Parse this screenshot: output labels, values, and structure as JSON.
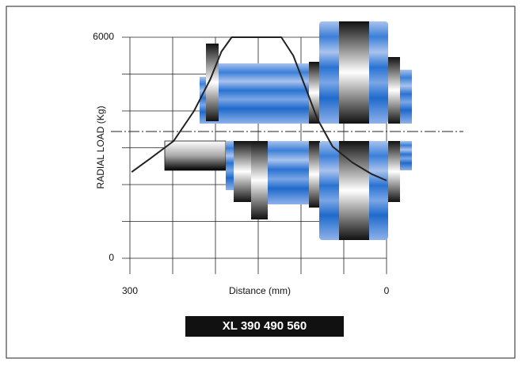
{
  "chart_data": {
    "type": "line",
    "ylabel": "RADIAL LOAD (Kg)",
    "xlabel": "Distance (mm)",
    "model": "XL  390  490  560",
    "xlim": [
      300,
      0
    ],
    "ylim": [
      0,
      6000
    ],
    "xticks": [
      300,
      {
        "value": 250,
        "label": null
      },
      {
        "value": 200,
        "label": null
      },
      {
        "value": 150,
        "label": null
      },
      {
        "value": 100,
        "label": null
      },
      {
        "value": 50,
        "label": null
      },
      0
    ],
    "yticks": [
      0,
      {
        "value": 1000,
        "label": null
      },
      {
        "value": 2000,
        "label": null
      },
      {
        "value": 3000,
        "label": null
      },
      {
        "value": 4000,
        "label": null
      },
      {
        "value": 5000,
        "label": null
      },
      6000
    ],
    "grid": true,
    "series": [
      {
        "color": "#222222",
        "x": [
          298,
          276,
          249,
          225,
          206,
          193,
          181,
          123,
          109,
          95,
          81,
          63,
          40,
          17,
          0
        ],
        "values": [
          2340,
          2710,
          3180,
          4000,
          4860,
          5610,
          6000,
          6000,
          5500,
          4650,
          3790,
          3030,
          2600,
          2280,
          2110
        ]
      }
    ]
  }
}
